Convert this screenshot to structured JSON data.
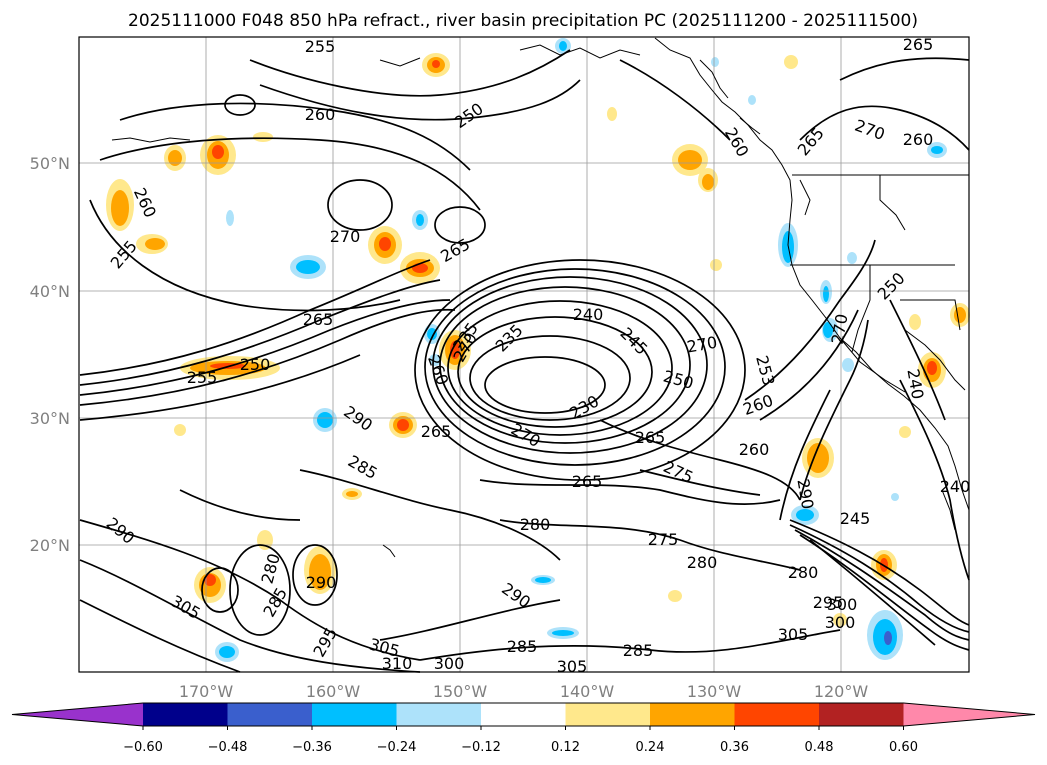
{
  "title": "2025111000 F048 850 hPa refract., river basin precipitation PC (2025111200 - 2025111500)",
  "lat_labels": [
    "50°N",
    "40°N",
    "30°N",
    "20°N"
  ],
  "lon_labels": [
    "170°W",
    "160°W",
    "150°W",
    "140°W",
    "130°W",
    "120°W"
  ],
  "colorbar": {
    "colors": [
      "#9932CC",
      "#00008B",
      "#3A5FCD",
      "#00BFFF",
      "#ADE2FA",
      "#FFFFFF",
      "#FFE88C",
      "#FFA500",
      "#FF4500",
      "#B22222",
      "#FF88AA"
    ],
    "tick_labels": [
      "−0.60",
      "−0.48",
      "−0.36",
      "−0.24",
      "−0.12",
      "0.12",
      "0.24",
      "0.36",
      "0.48",
      "0.60"
    ]
  },
  "contour_labels": [
    "255",
    "250",
    "260",
    "265",
    "270",
    "265",
    "260",
    "260",
    "265",
    "270",
    "260",
    "255",
    "265",
    "270",
    "250",
    "265",
    "235",
    "240",
    "245",
    "270",
    "250",
    "255",
    "260",
    "253",
    "235",
    "230",
    "260",
    "265",
    "270",
    "265",
    "275",
    "260",
    "290",
    "285",
    "280",
    "275",
    "280",
    "280",
    "290",
    "245",
    "290",
    "290",
    "280",
    "285",
    "305",
    "295",
    "305",
    "310",
    "300",
    "285",
    "305",
    "285",
    "290",
    "295",
    "300",
    "305",
    "300",
    "250",
    "270",
    "240",
    "240"
  ]
}
